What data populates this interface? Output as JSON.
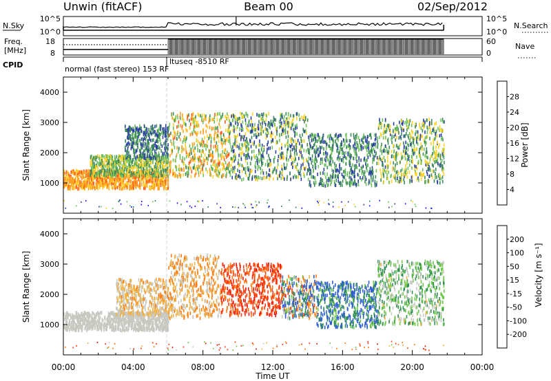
{
  "header": {
    "station": "Unwin (fitACF)",
    "beam": "Beam 00",
    "date": "02/Sep/2012"
  },
  "panels": {
    "noise": {
      "left_label": "N.Sky",
      "right_label": "N.Search",
      "left_ticks": [
        "10^5",
        "10^0"
      ],
      "right_ticks": [
        "10^5",
        "10^0"
      ]
    },
    "freq": {
      "left_label_1": "Freq.",
      "left_label_2": "[MHz]",
      "right_label": "Nave",
      "left_ticks": [
        "18",
        "8"
      ],
      "right_ticks": [
        "60",
        "0"
      ]
    },
    "cpid": {
      "label": "CPID",
      "mode_1": "normal (fast stereo) 153 RF",
      "mode_2": "ltuseq -8510 RF"
    }
  },
  "power_panel": {
    "ylabel": "Slant Range [km]",
    "yticks": [
      "1000",
      "2000",
      "3000",
      "4000"
    ],
    "colorbar_label": "Power [dB]",
    "colorbar_ticks": [
      "4",
      "8",
      "12",
      "16",
      "20",
      "24",
      "28"
    ],
    "colorbar_colors": [
      "#1a1aff",
      "#2a3fa0",
      "#3f8a5a",
      "#6fc160",
      "#ffd22a",
      "#ffa024",
      "#ff5a1a",
      "#ff1a1a"
    ]
  },
  "velocity_panel": {
    "ylabel": "Slant Range [km]",
    "yticks": [
      "1000",
      "2000",
      "3000",
      "4000"
    ],
    "colorbar_label": "Velocity [m s⁻¹]",
    "colorbar_ticks": [
      "200",
      "100",
      "50",
      "15",
      "-15",
      "-50",
      "-100",
      "-200"
    ],
    "colorbar_colors": [
      "#2626c8",
      "#2f5fd0",
      "#2f8f55",
      "#6ec84a",
      "#c8c8c0",
      "#f0b040",
      "#ff7a10",
      "#ff3a10",
      "#e01010"
    ]
  },
  "xaxis": {
    "label": "Time UT",
    "ticks": [
      "00:00",
      "04:00",
      "08:00",
      "12:00",
      "16:00",
      "20:00",
      "00:00"
    ]
  },
  "chart_data": {
    "type": "heatmap",
    "title": "Unwin (fitACF)  Beam 00  02/Sep/2012",
    "xlabel": "Time UT",
    "ylabel": "Slant Range [km]",
    "xlim_hours": [
      0,
      24
    ],
    "ylim_km": [
      0,
      4500
    ],
    "mode_change_hour": 6.0,
    "data_end_hour": 21.8,
    "power_scale_db": [
      0,
      32
    ],
    "velocity_scale_ms": [
      -250,
      250
    ],
    "power_clusters": [
      {
        "t0": 0.0,
        "t1": 6.0,
        "r0": 800,
        "r1": 1400,
        "v0": 18,
        "v1": 26
      },
      {
        "t0": 1.5,
        "t1": 6.0,
        "r0": 1200,
        "r1": 1900,
        "v0": 8,
        "v1": 20
      },
      {
        "t0": 3.5,
        "t1": 6.0,
        "r0": 1800,
        "r1": 2900,
        "v0": 4,
        "v1": 14
      },
      {
        "t0": 6.0,
        "t1": 9.5,
        "r0": 1200,
        "r1": 3300,
        "v0": 10,
        "v1": 26
      },
      {
        "t0": 9.5,
        "t1": 14.0,
        "r0": 1100,
        "r1": 3300,
        "v0": 4,
        "v1": 20
      },
      {
        "t0": 14.0,
        "t1": 18.0,
        "r0": 900,
        "r1": 2600,
        "v0": 4,
        "v1": 16
      },
      {
        "t0": 18.0,
        "t1": 21.8,
        "r0": 1000,
        "r1": 3100,
        "v0": 6,
        "v1": 20
      }
    ],
    "velocity_clusters": [
      {
        "t0": 0.0,
        "t1": 6.0,
        "r0": 800,
        "r1": 1400,
        "v0": -12,
        "v1": 12
      },
      {
        "t0": 3.0,
        "t1": 6.0,
        "r0": 1300,
        "r1": 2500,
        "v0": -60,
        "v1": 15
      },
      {
        "t0": 6.0,
        "t1": 9.0,
        "r0": 1200,
        "r1": 3300,
        "v0": -80,
        "v1": 10
      },
      {
        "t0": 9.0,
        "t1": 12.5,
        "r0": 1300,
        "r1": 3000,
        "v0": -220,
        "v1": -60
      },
      {
        "t0": 12.5,
        "t1": 14.5,
        "r0": 1200,
        "r1": 2600,
        "v0": -120,
        "v1": 200
      },
      {
        "t0": 14.5,
        "t1": 18.0,
        "r0": 900,
        "r1": 2400,
        "v0": 20,
        "v1": 200
      },
      {
        "t0": 18.0,
        "t1": 21.8,
        "r0": 1000,
        "r1": 3100,
        "v0": -20,
        "v1": 80
      }
    ]
  }
}
